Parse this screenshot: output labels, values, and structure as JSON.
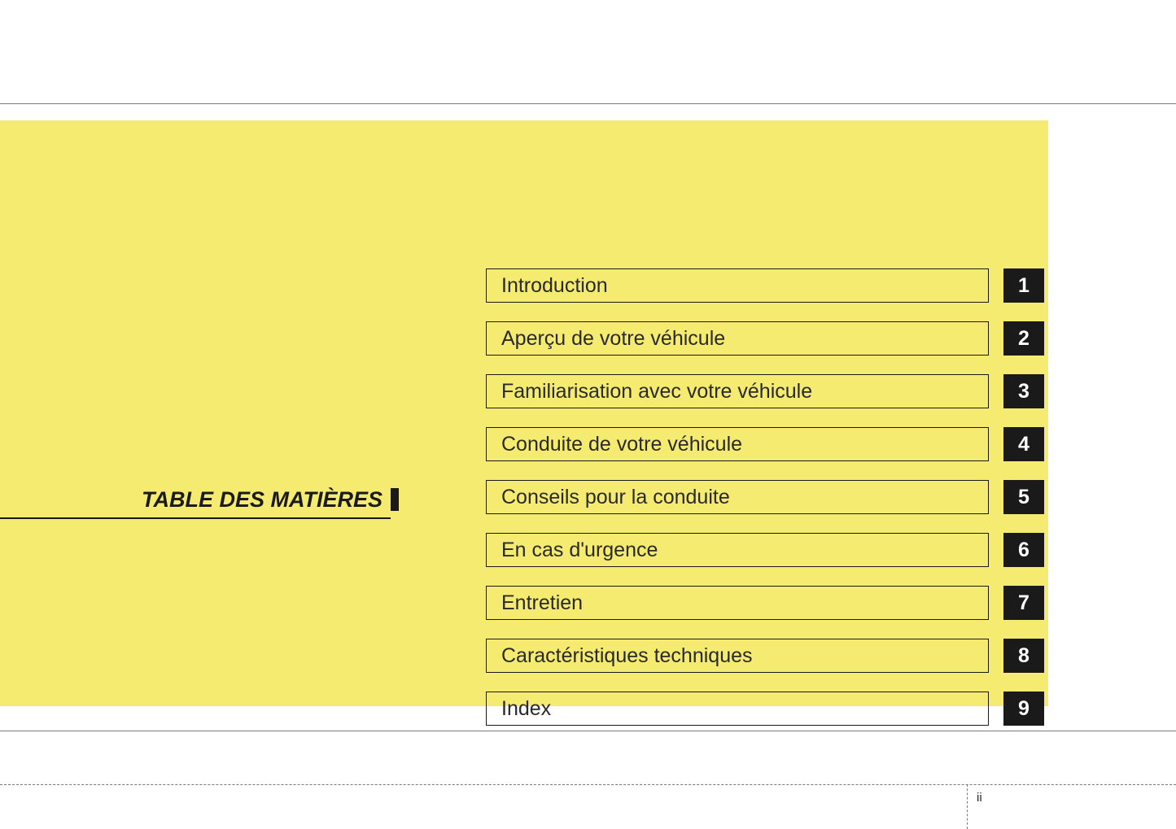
{
  "heading": "TABLE DES MATIÈRES",
  "pageNumber": "ii",
  "colors": {
    "pageBackground": "#ffffff",
    "panelBackground": "#f4eb70",
    "border": "#1a1a1a",
    "numberBoxBackground": "#1a1a1a",
    "numberBoxText": "#ffffff",
    "labelText": "#2a2a2a",
    "ruleColor": "#7a7a7a"
  },
  "typography": {
    "headingFontSize": 27,
    "labelFontSize": 25,
    "numberFontSize": 25,
    "pageNumberFontSize": 15
  },
  "toc": [
    {
      "label": "Introduction",
      "number": "1"
    },
    {
      "label": "Aperçu de votre véhicule",
      "number": "2"
    },
    {
      "label": "Familiarisation avec votre véhicule",
      "number": "3"
    },
    {
      "label": "Conduite de votre véhicule",
      "number": "4"
    },
    {
      "label": "Conseils pour la conduite",
      "number": "5"
    },
    {
      "label": "En cas d'urgence",
      "number": "6"
    },
    {
      "label": "Entretien",
      "number": "7"
    },
    {
      "label": "Caractéristiques techniques",
      "number": "8"
    },
    {
      "label": "Index",
      "number": "9"
    }
  ]
}
